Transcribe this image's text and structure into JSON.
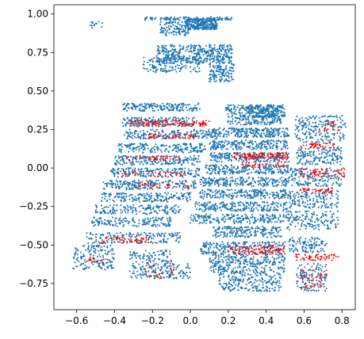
{
  "chart_data": {
    "type": "scatter",
    "title": "",
    "xlabel": "",
    "ylabel": "",
    "xlim": [
      -0.72,
      0.87
    ],
    "ylim": [
      -0.92,
      1.06
    ],
    "grid": false,
    "legend": "none",
    "x_ticks": [
      {
        "value": -0.6,
        "label": "−0.6"
      },
      {
        "value": -0.4,
        "label": "−0.4"
      },
      {
        "value": -0.2,
        "label": "−0.2"
      },
      {
        "value": 0.0,
        "label": "0.0"
      },
      {
        "value": 0.2,
        "label": "0.2"
      },
      {
        "value": 0.4,
        "label": "0.4"
      },
      {
        "value": 0.6,
        "label": "0.6"
      },
      {
        "value": 0.8,
        "label": "0.8"
      }
    ],
    "y_ticks": [
      {
        "value": -0.75,
        "label": "−0.75"
      },
      {
        "value": -0.5,
        "label": "−0.50"
      },
      {
        "value": -0.25,
        "label": "−0.25"
      },
      {
        "value": 0.0,
        "label": "0.00"
      },
      {
        "value": 0.25,
        "label": "0.25"
      },
      {
        "value": 0.5,
        "label": "0.50"
      },
      {
        "value": 0.75,
        "label": "0.75"
      },
      {
        "value": 1.0,
        "label": "1.00"
      }
    ],
    "series": [
      {
        "color": "#1f77b4",
        "clusters": [
          {
            "x": [
              -0.03,
              0.14
            ],
            "y": [
              0.9,
              0.97
            ],
            "n": 260
          },
          {
            "x": [
              -0.24,
              0.22
            ],
            "y": [
              0.96,
              0.98
            ],
            "n": 120
          },
          {
            "x": [
              -0.16,
              -0.01
            ],
            "y": [
              0.86,
              0.95
            ],
            "n": 110
          },
          {
            "x": [
              -0.53,
              -0.46
            ],
            "y": [
              0.91,
              0.95
            ],
            "n": 14
          },
          {
            "x": [
              -0.18,
              0.22
            ],
            "y": [
              0.68,
              0.8
            ],
            "n": 420
          },
          {
            "x": [
              0.1,
              0.23
            ],
            "y": [
              0.56,
              0.68
            ],
            "n": 120
          },
          {
            "x": [
              -0.25,
              0.05
            ],
            "y": [
              0.62,
              0.72
            ],
            "n": 140
          },
          {
            "x": [
              -0.36,
              0.05
            ],
            "y": [
              0.37,
              0.42
            ],
            "n": 180
          },
          {
            "x": [
              -0.36,
              0.02
            ],
            "y": [
              0.27,
              0.33
            ],
            "n": 180
          },
          {
            "x": [
              -0.35,
              0.14
            ],
            "y": [
              0.19,
              0.25
            ],
            "n": 200
          },
          {
            "x": [
              -0.38,
              0.08
            ],
            "y": [
              0.1,
              0.16
            ],
            "n": 190
          },
          {
            "x": [
              -0.4,
              0.05
            ],
            "y": [
              0.02,
              0.08
            ],
            "n": 190
          },
          {
            "x": [
              -0.42,
              0.05
            ],
            "y": [
              -0.06,
              0.0
            ],
            "n": 190
          },
          {
            "x": [
              -0.46,
              0.03
            ],
            "y": [
              -0.14,
              -0.08
            ],
            "n": 200
          },
          {
            "x": [
              -0.47,
              0.0
            ],
            "y": [
              -0.22,
              -0.16
            ],
            "n": 180
          },
          {
            "x": [
              -0.5,
              -0.05
            ],
            "y": [
              -0.3,
              -0.24
            ],
            "n": 160
          },
          {
            "x": [
              -0.52,
              -0.1
            ],
            "y": [
              -0.38,
              -0.32
            ],
            "n": 150
          },
          {
            "x": [
              -0.55,
              -0.05
            ],
            "y": [
              -0.49,
              -0.42
            ],
            "n": 170
          },
          {
            "x": [
              -0.62,
              -0.4
            ],
            "y": [
              -0.66,
              -0.5
            ],
            "n": 150
          },
          {
            "x": [
              -0.32,
              -0.1
            ],
            "y": [
              -0.72,
              -0.53
            ],
            "n": 200
          },
          {
            "x": [
              -0.1,
              0.0
            ],
            "y": [
              -0.72,
              -0.62
            ],
            "n": 40
          },
          {
            "x": [
              0.18,
              0.48
            ],
            "y": [
              0.28,
              0.41
            ],
            "n": 300
          },
          {
            "x": [
              0.3,
              0.5
            ],
            "y": [
              0.33,
              0.41
            ],
            "n": 160
          },
          {
            "x": [
              0.1,
              0.52
            ],
            "y": [
              0.2,
              0.26
            ],
            "n": 240
          },
          {
            "x": [
              0.1,
              0.52
            ],
            "y": [
              0.12,
              0.18
            ],
            "n": 220
          },
          {
            "x": [
              0.1,
              0.52
            ],
            "y": [
              0.04,
              0.1
            ],
            "n": 220
          },
          {
            "x": [
              0.08,
              0.52
            ],
            "y": [
              -0.04,
              0.02
            ],
            "n": 220
          },
          {
            "x": [
              0.05,
              0.52
            ],
            "y": [
              -0.12,
              -0.06
            ],
            "n": 220
          },
          {
            "x": [
              0.05,
              0.52
            ],
            "y": [
              -0.2,
              -0.14
            ],
            "n": 220
          },
          {
            "x": [
              0.02,
              0.52
            ],
            "y": [
              -0.28,
              -0.22
            ],
            "n": 220
          },
          {
            "x": [
              0.0,
              0.5
            ],
            "y": [
              -0.36,
              -0.3
            ],
            "n": 200
          },
          {
            "x": [
              0.12,
              0.48
            ],
            "y": [
              -0.45,
              -0.38
            ],
            "n": 200
          },
          {
            "x": [
              0.05,
              0.5
            ],
            "y": [
              -0.56,
              -0.48
            ],
            "n": 240
          },
          {
            "x": [
              0.1,
              0.5
            ],
            "y": [
              -0.68,
              -0.56
            ],
            "n": 280
          },
          {
            "x": [
              0.15,
              0.48
            ],
            "y": [
              -0.8,
              -0.68
            ],
            "n": 200
          },
          {
            "x": [
              0.55,
              0.82
            ],
            "y": [
              0.16,
              0.34
            ],
            "n": 200
          },
          {
            "x": [
              0.56,
              0.8
            ],
            "y": [
              0.02,
              0.14
            ],
            "n": 160
          },
          {
            "x": [
              0.52,
              0.8
            ],
            "y": [
              -0.12,
              0.0
            ],
            "n": 160
          },
          {
            "x": [
              0.52,
              0.78
            ],
            "y": [
              -0.26,
              -0.14
            ],
            "n": 150
          },
          {
            "x": [
              0.5,
              0.78
            ],
            "y": [
              -0.4,
              -0.28
            ],
            "n": 150
          },
          {
            "x": [
              0.52,
              0.72
            ],
            "y": [
              -0.55,
              -0.45
            ],
            "n": 110
          },
          {
            "x": [
              0.56,
              0.72
            ],
            "y": [
              -0.8,
              -0.62
            ],
            "n": 120
          }
        ]
      },
      {
        "color": "#ff0000",
        "clusters": [
          {
            "x": [
              -0.32,
              0.1
            ],
            "y": [
              0.27,
              0.31
            ],
            "n": 120
          },
          {
            "x": [
              -0.22,
              0.02
            ],
            "y": [
              0.19,
              0.22
            ],
            "n": 50
          },
          {
            "x": [
              -0.35,
              -0.05
            ],
            "y": [
              0.05,
              0.08
            ],
            "n": 40
          },
          {
            "x": [
              -0.36,
              0.0
            ],
            "y": [
              -0.06,
              -0.02
            ],
            "n": 40
          },
          {
            "x": [
              -0.3,
              0.0
            ],
            "y": [
              -0.13,
              -0.1
            ],
            "n": 30
          },
          {
            "x": [
              0.22,
              0.52
            ],
            "y": [
              0.06,
              0.1
            ],
            "n": 110
          },
          {
            "x": [
              0.25,
              0.5
            ],
            "y": [
              0.0,
              0.04
            ],
            "n": 40
          },
          {
            "x": [
              0.58,
              0.76
            ],
            "y": [
              0.13,
              0.16
            ],
            "n": 40
          },
          {
            "x": [
              0.58,
              0.82
            ],
            "y": [
              -0.06,
              0.0
            ],
            "n": 60
          },
          {
            "x": [
              0.58,
              0.75
            ],
            "y": [
              -0.16,
              -0.13
            ],
            "n": 40
          },
          {
            "x": [
              0.68,
              0.78
            ],
            "y": [
              0.24,
              0.3
            ],
            "n": 20
          },
          {
            "x": [
              0.2,
              0.5
            ],
            "y": [
              -0.56,
              -0.5
            ],
            "n": 100
          },
          {
            "x": [
              0.55,
              0.78
            ],
            "y": [
              -0.6,
              -0.56
            ],
            "n": 60
          },
          {
            "x": [
              0.58,
              0.72
            ],
            "y": [
              -0.78,
              -0.66
            ],
            "n": 40
          },
          {
            "x": [
              -0.48,
              -0.2
            ],
            "y": [
              -0.49,
              -0.45
            ],
            "n": 50
          },
          {
            "x": [
              -0.56,
              -0.45
            ],
            "y": [
              -0.62,
              -0.58
            ],
            "n": 15
          },
          {
            "x": [
              -0.25,
              -0.08
            ],
            "y": [
              -0.72,
              -0.6
            ],
            "n": 25
          }
        ]
      }
    ]
  }
}
